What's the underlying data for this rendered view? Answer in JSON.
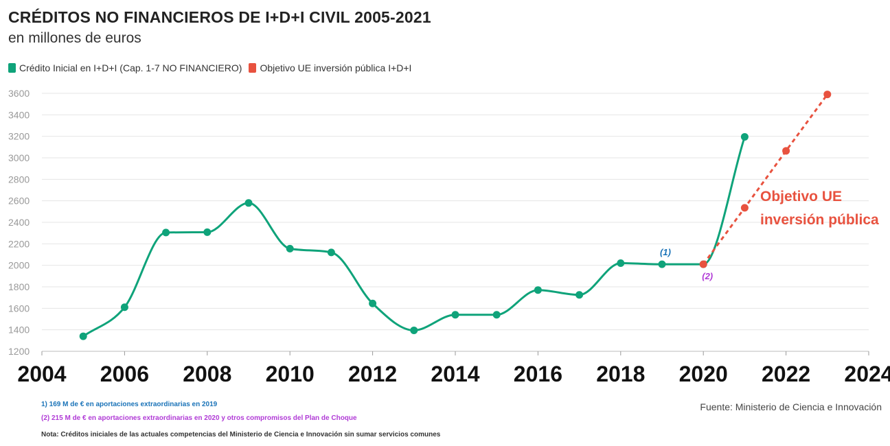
{
  "header": {
    "title": "CRÉDITOS NO FINANCIEROS DE I+D+I CIVIL 2005-2021",
    "subtitle": "en millones de euros"
  },
  "legend": [
    {
      "label": "Crédito Inicial en I+D+I (Cap. 1-7 NO FINANCIERO)",
      "color": "#0fa37a"
    },
    {
      "label": "Objetivo UE inversión pública I+D+I",
      "color": "#e8523f"
    }
  ],
  "chart_data": {
    "type": "line",
    "title": "CRÉDITOS NO FINANCIEROS DE I+D+I CIVIL 2005-2021",
    "xlabel": "",
    "ylabel": "en millones de euros",
    "xlim": [
      2004,
      2024
    ],
    "ylim": [
      1200,
      3600
    ],
    "x_ticks": [
      2004,
      2006,
      2008,
      2010,
      2012,
      2014,
      2016,
      2018,
      2020,
      2022,
      2024
    ],
    "y_ticks": [
      1200,
      1400,
      1600,
      1800,
      2000,
      2200,
      2400,
      2600,
      2800,
      3000,
      3200,
      3400,
      3600
    ],
    "grid": true,
    "series": [
      {
        "name": "Crédito Inicial en I+D+I (Cap. 1-7 NO FINANCIERO)",
        "color": "#0fa37a",
        "style": "solid",
        "x": [
          2005,
          2006,
          2007,
          2008,
          2009,
          2010,
          2011,
          2012,
          2013,
          2014,
          2015,
          2016,
          2017,
          2018,
          2019,
          2020,
          2021
        ],
        "y": [
          1340,
          1610,
          2305,
          2308,
          2580,
          2155,
          2120,
          1645,
          1395,
          1540,
          1540,
          1770,
          1725,
          2020,
          2010,
          2010,
          3195
        ]
      },
      {
        "name": "Objetivo UE inversión pública I+D+I",
        "color": "#e8523f",
        "style": "dashed",
        "x": [
          2020,
          2021,
          2022,
          2023
        ],
        "y": [
          2010,
          2535,
          3065,
          3590
        ]
      }
    ],
    "annotations": [
      {
        "text": "(1)",
        "x": 2019,
        "y": 2010,
        "color": "#1a73b8"
      },
      {
        "text": "(2)",
        "x": 2020,
        "y": 2010,
        "color": "#b03ad6"
      }
    ],
    "series_label": {
      "lines": [
        "Objetivo UE",
        "inversión pública"
      ],
      "color": "#e8523f"
    }
  },
  "footer": {
    "note1": "1) 169 M de € en aportaciones extraordinarias en 2019",
    "note2": "(2) 215 M de € en aportaciones extraordinarias en 2020 y otros compromisos del Plan de Choque",
    "note3": "Nota: Créditos iniciales de las actuales competencias del Ministerio de Ciencia e Innovación sin sumar servicios comunes",
    "source": "Fuente: Ministerio de Ciencia e Innovación"
  }
}
